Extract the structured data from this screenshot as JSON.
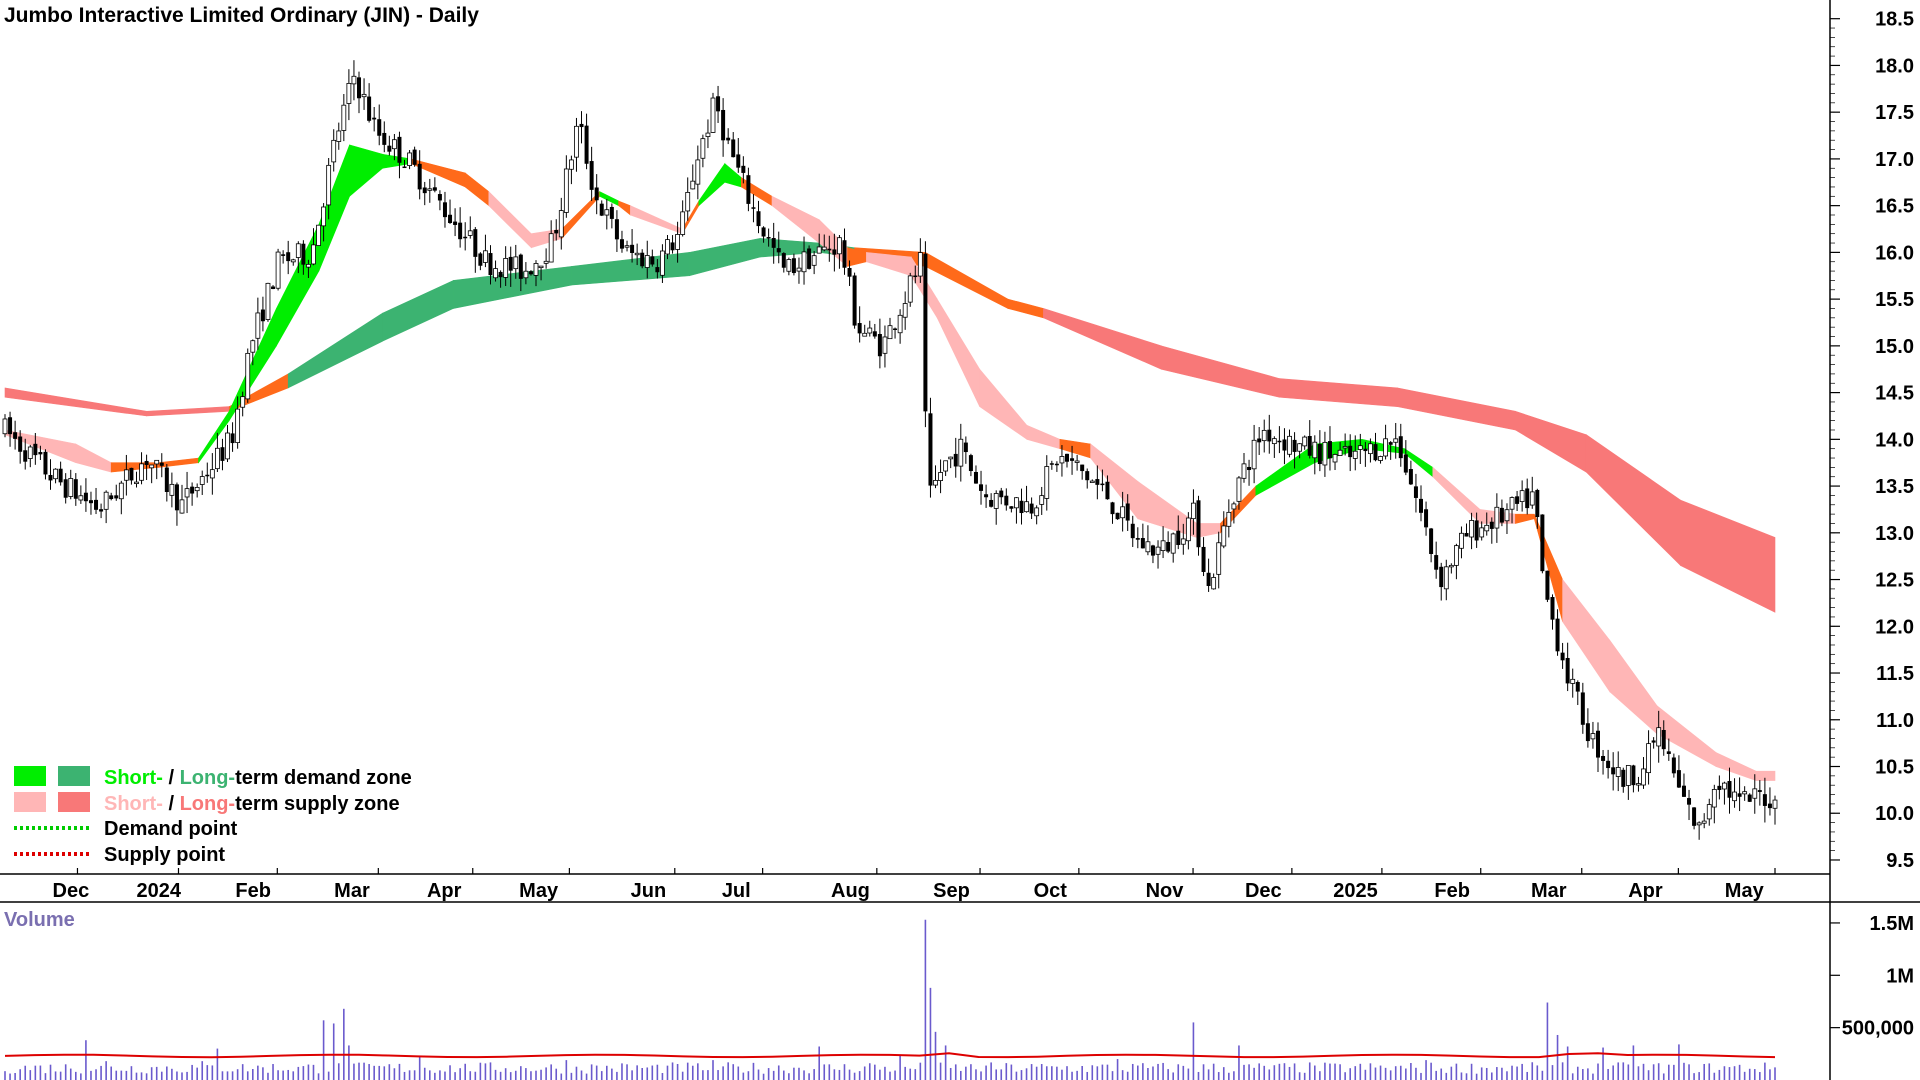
{
  "title": "Jumbo Interactive Limited Ordinary (JIN) - Daily",
  "volume_label": "Volume",
  "colors": {
    "short_demand": "#00ee00",
    "long_demand": "#3cb371",
    "short_supply": "#ffb6b6",
    "long_supply": "#f87878",
    "transition": "#ff6a1a",
    "demand_point": "#00cc00",
    "supply_point": "#dd0000",
    "volume_bar": "#6a5acd",
    "volume_avg": "#dd0000",
    "candle": "#000000"
  },
  "legend": [
    {
      "swatches": [
        "short_demand",
        "long_demand"
      ],
      "part1": "Short-",
      "sep": " / ",
      "part2": "Long-",
      "rest": "term demand zone"
    },
    {
      "swatches": [
        "short_supply",
        "long_supply"
      ],
      "part1": "Short-",
      "sep": " / ",
      "part2": "Long-",
      "rest": "term supply zone"
    },
    {
      "line": "demand_point",
      "label": "Demand point"
    },
    {
      "line": "supply_point",
      "label": "Supply point"
    }
  ],
  "chart_data": {
    "type": "candlestick",
    "title": "Jumbo Interactive Limited Ordinary (JIN) - Daily",
    "x_tick_labels": [
      "Dec",
      "2024",
      "Feb",
      "Mar",
      "Apr",
      "May",
      "Jun",
      "Jul",
      "Aug",
      "Sep",
      "Oct",
      "Nov",
      "Dec",
      "2025",
      "Feb",
      "Mar",
      "Apr",
      "May"
    ],
    "y_ticks": [
      9.5,
      10.0,
      10.5,
      11.0,
      11.5,
      12.0,
      12.5,
      13.0,
      13.5,
      14.0,
      14.5,
      15.0,
      15.5,
      16.0,
      16.5,
      17.0,
      17.5,
      18.0,
      18.5
    ],
    "y_tick_labels": [
      "9.5",
      "10.0",
      "10.5",
      "11.0",
      "11.5",
      "12.0",
      "12.5",
      "13.0",
      "13.5",
      "14.0",
      "14.5",
      "15.0",
      "15.5",
      "16.0",
      "16.5",
      "17.0",
      "17.5",
      "18.0",
      "18.5"
    ],
    "ylim": [
      9.35,
      18.7
    ],
    "price_anchors": [
      {
        "t": 0,
        "p": 14.1
      },
      {
        "t": 2,
        "p": 13.6
      },
      {
        "t": 4,
        "p": 13.25
      },
      {
        "t": 6,
        "p": 13.8
      },
      {
        "t": 7.5,
        "p": 13.3
      },
      {
        "t": 9.6,
        "p": 14.0
      },
      {
        "t": 10.4,
        "p": 15.0
      },
      {
        "t": 11.6,
        "p": 15.9
      },
      {
        "t": 13.0,
        "p": 16.0
      },
      {
        "t": 14.0,
        "p": 17.2
      },
      {
        "t": 14.8,
        "p": 17.9
      },
      {
        "t": 15.7,
        "p": 17.3
      },
      {
        "t": 17.0,
        "p": 17.0
      },
      {
        "t": 18.5,
        "p": 16.5
      },
      {
        "t": 20.4,
        "p": 15.9
      },
      {
        "t": 22.0,
        "p": 15.8
      },
      {
        "t": 23.2,
        "p": 16.1
      },
      {
        "t": 24.3,
        "p": 17.4
      },
      {
        "t": 25.0,
        "p": 16.6
      },
      {
        "t": 26.3,
        "p": 16.0
      },
      {
        "t": 27.6,
        "p": 15.9
      },
      {
        "t": 28.6,
        "p": 16.2
      },
      {
        "t": 29.3,
        "p": 17.0
      },
      {
        "t": 30.1,
        "p": 17.6
      },
      {
        "t": 30.7,
        "p": 17.1
      },
      {
        "t": 31.8,
        "p": 16.4
      },
      {
        "t": 33.0,
        "p": 15.8
      },
      {
        "t": 34.5,
        "p": 16.0
      },
      {
        "t": 35.4,
        "p": 16.1
      },
      {
        "t": 36.1,
        "p": 15.2
      },
      {
        "t": 37.2,
        "p": 15.0
      },
      {
        "t": 38.1,
        "p": 15.5
      },
      {
        "t": 38.8,
        "p": 15.9
      },
      {
        "t": 39.1,
        "p": 13.3
      },
      {
        "t": 39.7,
        "p": 13.7
      },
      {
        "t": 40.5,
        "p": 13.9
      },
      {
        "t": 41.5,
        "p": 13.4
      },
      {
        "t": 43.5,
        "p": 13.3
      },
      {
        "t": 44.6,
        "p": 13.8
      },
      {
        "t": 45.4,
        "p": 13.7
      },
      {
        "t": 46.7,
        "p": 13.4
      },
      {
        "t": 48.0,
        "p": 12.9
      },
      {
        "t": 49.0,
        "p": 12.8
      },
      {
        "t": 50.4,
        "p": 13.2
      },
      {
        "t": 51.0,
        "p": 12.4
      },
      {
        "t": 52.0,
        "p": 13.4
      },
      {
        "t": 53.3,
        "p": 14.1
      },
      {
        "t": 55.0,
        "p": 13.9
      },
      {
        "t": 57.0,
        "p": 13.8
      },
      {
        "t": 59.0,
        "p": 14.0
      },
      {
        "t": 60.0,
        "p": 13.2
      },
      {
        "t": 60.8,
        "p": 12.5
      },
      {
        "t": 62.0,
        "p": 13.0
      },
      {
        "t": 63.6,
        "p": 13.2
      },
      {
        "t": 64.8,
        "p": 13.4
      },
      {
        "t": 65.2,
        "p": 12.4
      },
      {
        "t": 66.3,
        "p": 11.4
      },
      {
        "t": 67.2,
        "p": 10.8
      },
      {
        "t": 68.5,
        "p": 10.35
      },
      {
        "t": 69.5,
        "p": 10.5
      },
      {
        "t": 70.0,
        "p": 10.9
      },
      {
        "t": 71.0,
        "p": 10.2
      },
      {
        "t": 71.8,
        "p": 9.8
      },
      {
        "t": 72.5,
        "p": 10.4
      },
      {
        "t": 73.5,
        "p": 10.1
      },
      {
        "t": 74.5,
        "p": 10.2
      },
      {
        "t": 75.0,
        "p": 10.1
      }
    ],
    "long_zone": [
      {
        "t": 0,
        "lo": 14.45,
        "hi": 14.55,
        "z": "ls"
      },
      {
        "t": 6,
        "lo": 14.25,
        "hi": 14.3,
        "z": "ls"
      },
      {
        "t": 9.5,
        "lo": 14.3,
        "hi": 14.35,
        "z": "tr"
      },
      {
        "t": 12,
        "lo": 14.55,
        "hi": 14.7,
        "z": "ld"
      },
      {
        "t": 16,
        "lo": 15.05,
        "hi": 15.35,
        "z": "ld"
      },
      {
        "t": 19,
        "lo": 15.4,
        "hi": 15.7,
        "z": "ld"
      },
      {
        "t": 24,
        "lo": 15.65,
        "hi": 15.85,
        "z": "ld"
      },
      {
        "t": 29,
        "lo": 15.75,
        "hi": 16.0,
        "z": "ld"
      },
      {
        "t": 32,
        "lo": 15.95,
        "hi": 16.15,
        "z": "ld"
      },
      {
        "t": 34.5,
        "lo": 16.0,
        "hi": 16.1,
        "z": "ld"
      },
      {
        "t": 36,
        "lo": 15.95,
        "hi": 16.05,
        "z": "tr"
      },
      {
        "t": 39,
        "lo": 15.85,
        "hi": 16.0,
        "z": "tr"
      },
      {
        "t": 42.5,
        "lo": 15.4,
        "hi": 15.5,
        "z": "tr"
      },
      {
        "t": 44,
        "lo": 15.3,
        "hi": 15.4,
        "z": "ls"
      },
      {
        "t": 49,
        "lo": 14.75,
        "hi": 15.0,
        "z": "ls"
      },
      {
        "t": 54,
        "lo": 14.45,
        "hi": 14.65,
        "z": "ls"
      },
      {
        "t": 59,
        "lo": 14.35,
        "hi": 14.55,
        "z": "ls"
      },
      {
        "t": 64,
        "lo": 14.1,
        "hi": 14.3,
        "z": "ls"
      },
      {
        "t": 67,
        "lo": 13.65,
        "hi": 14.05,
        "z": "ls"
      },
      {
        "t": 71,
        "lo": 12.65,
        "hi": 13.35,
        "z": "ls"
      },
      {
        "t": 75,
        "lo": 12.15,
        "hi": 12.95,
        "z": "ls"
      }
    ],
    "short_zone": [
      {
        "t": 0,
        "lo": 14.05,
        "hi": 14.1,
        "z": "ss"
      },
      {
        "t": 3,
        "lo": 13.75,
        "hi": 13.95,
        "z": "ss"
      },
      {
        "t": 4.5,
        "lo": 13.65,
        "hi": 13.75,
        "z": "tr"
      },
      {
        "t": 6.5,
        "lo": 13.7,
        "hi": 13.75,
        "z": "tr"
      },
      {
        "t": 8.2,
        "lo": 13.75,
        "hi": 13.8,
        "z": "sd"
      },
      {
        "t": 9.5,
        "lo": 14.2,
        "hi": 14.3,
        "z": "sd"
      },
      {
        "t": 11.5,
        "lo": 15.0,
        "hi": 15.4,
        "z": "sd"
      },
      {
        "t": 13.3,
        "lo": 15.8,
        "hi": 16.3,
        "z": "sd"
      },
      {
        "t": 14.6,
        "lo": 16.6,
        "hi": 17.15,
        "z": "sd"
      },
      {
        "t": 16.0,
        "lo": 16.9,
        "hi": 17.05,
        "z": "sd"
      },
      {
        "t": 17.2,
        "lo": 16.95,
        "hi": 17.0,
        "z": "tr"
      },
      {
        "t": 19.5,
        "lo": 16.7,
        "hi": 16.85,
        "z": "tr"
      },
      {
        "t": 20.5,
        "lo": 16.5,
        "hi": 16.65,
        "z": "ss"
      },
      {
        "t": 22.3,
        "lo": 16.05,
        "hi": 16.2,
        "z": "ss"
      },
      {
        "t": 23.6,
        "lo": 16.15,
        "hi": 16.25,
        "z": "tr"
      },
      {
        "t": 25.2,
        "lo": 16.6,
        "hi": 16.65,
        "z": "sd"
      },
      {
        "t": 26.0,
        "lo": 16.5,
        "hi": 16.55,
        "z": "tr"
      },
      {
        "t": 26.5,
        "lo": 16.4,
        "hi": 16.5,
        "z": "ss"
      },
      {
        "t": 28.7,
        "lo": 16.2,
        "hi": 16.25,
        "z": "tr"
      },
      {
        "t": 29.4,
        "lo": 16.5,
        "hi": 16.55,
        "z": "sd"
      },
      {
        "t": 30.5,
        "lo": 16.75,
        "hi": 16.95,
        "z": "sd"
      },
      {
        "t": 31.2,
        "lo": 16.7,
        "hi": 16.8,
        "z": "tr"
      },
      {
        "t": 32.5,
        "lo": 16.5,
        "hi": 16.6,
        "z": "ss"
      },
      {
        "t": 34.5,
        "lo": 16.1,
        "hi": 16.35,
        "z": "ss"
      },
      {
        "t": 35.7,
        "lo": 15.85,
        "hi": 16.05,
        "z": "tr"
      },
      {
        "t": 36.5,
        "lo": 15.9,
        "hi": 16.0,
        "z": "ss"
      },
      {
        "t": 38.4,
        "lo": 15.75,
        "hi": 15.95,
        "z": "ss"
      },
      {
        "t": 39.5,
        "lo": 15.3,
        "hi": 15.5,
        "z": "ss"
      },
      {
        "t": 41.3,
        "lo": 14.35,
        "hi": 14.75,
        "z": "ss"
      },
      {
        "t": 43.3,
        "lo": 14.0,
        "hi": 14.15,
        "z": "ss"
      },
      {
        "t": 44.7,
        "lo": 13.9,
        "hi": 14.0,
        "z": "tr"
      },
      {
        "t": 46.0,
        "lo": 13.8,
        "hi": 13.95,
        "z": "ss"
      },
      {
        "t": 48.0,
        "lo": 13.15,
        "hi": 13.55,
        "z": "ss"
      },
      {
        "t": 50.5,
        "lo": 12.95,
        "hi": 13.1,
        "z": "ss"
      },
      {
        "t": 51.5,
        "lo": 13.0,
        "hi": 13.1,
        "z": "tr"
      },
      {
        "t": 53.0,
        "lo": 13.4,
        "hi": 13.5,
        "z": "sd"
      },
      {
        "t": 55.5,
        "lo": 13.75,
        "hi": 13.95,
        "z": "sd"
      },
      {
        "t": 57.5,
        "lo": 13.9,
        "hi": 14.0,
        "z": "sd"
      },
      {
        "t": 59.3,
        "lo": 13.85,
        "hi": 13.9,
        "z": "sd"
      },
      {
        "t": 60.5,
        "lo": 13.6,
        "hi": 13.7,
        "z": "ss"
      },
      {
        "t": 62.5,
        "lo": 13.1,
        "hi": 13.25,
        "z": "ss"
      },
      {
        "t": 64.0,
        "lo": 13.1,
        "hi": 13.2,
        "z": "tr"
      },
      {
        "t": 64.8,
        "lo": 13.15,
        "hi": 13.2,
        "z": "tr"
      },
      {
        "t": 66.0,
        "lo": 12.05,
        "hi": 12.5,
        "z": "ss"
      },
      {
        "t": 68.0,
        "lo": 11.3,
        "hi": 11.85,
        "z": "ss"
      },
      {
        "t": 70.0,
        "lo": 10.85,
        "hi": 11.15,
        "z": "ss"
      },
      {
        "t": 72.5,
        "lo": 10.5,
        "hi": 10.65,
        "z": "ss"
      },
      {
        "t": 74.2,
        "lo": 10.35,
        "hi": 10.45,
        "z": "ss"
      },
      {
        "t": 75.0,
        "lo": 10.35,
        "hi": 10.45,
        "z": "ss"
      }
    ],
    "volume": {
      "y_tick_labels": [
        "1.5M",
        "1M",
        "500,000"
      ],
      "y_ticks": [
        1500000,
        1000000,
        500000
      ],
      "ylim": [
        0,
        1700000
      ],
      "spikes": [
        {
          "t": 3.5,
          "v": 380000
        },
        {
          "t": 4.2,
          "v": 180000
        },
        {
          "t": 8.3,
          "v": 180000
        },
        {
          "t": 8.9,
          "v": 300000
        },
        {
          "t": 13.4,
          "v": 570000
        },
        {
          "t": 13.9,
          "v": 540000
        },
        {
          "t": 14.3,
          "v": 680000
        },
        {
          "t": 14.6,
          "v": 330000
        },
        {
          "t": 17.5,
          "v": 220000
        },
        {
          "t": 23.8,
          "v": 190000
        },
        {
          "t": 30.1,
          "v": 190000
        },
        {
          "t": 34.6,
          "v": 320000
        },
        {
          "t": 36.7,
          "v": 160000
        },
        {
          "t": 38.0,
          "v": 240000
        },
        {
          "t": 38.9,
          "v": 1530000
        },
        {
          "t": 39.2,
          "v": 880000
        },
        {
          "t": 39.5,
          "v": 460000
        },
        {
          "t": 39.8,
          "v": 330000
        },
        {
          "t": 47.1,
          "v": 200000
        },
        {
          "t": 50.3,
          "v": 550000
        },
        {
          "t": 52.2,
          "v": 330000
        },
        {
          "t": 60.3,
          "v": 190000
        },
        {
          "t": 65.4,
          "v": 740000
        },
        {
          "t": 65.7,
          "v": 430000
        },
        {
          "t": 66.3,
          "v": 320000
        },
        {
          "t": 67.7,
          "v": 310000
        },
        {
          "t": 69.1,
          "v": 330000
        },
        {
          "t": 71.0,
          "v": 340000
        }
      ],
      "avg_level": 230000
    }
  }
}
